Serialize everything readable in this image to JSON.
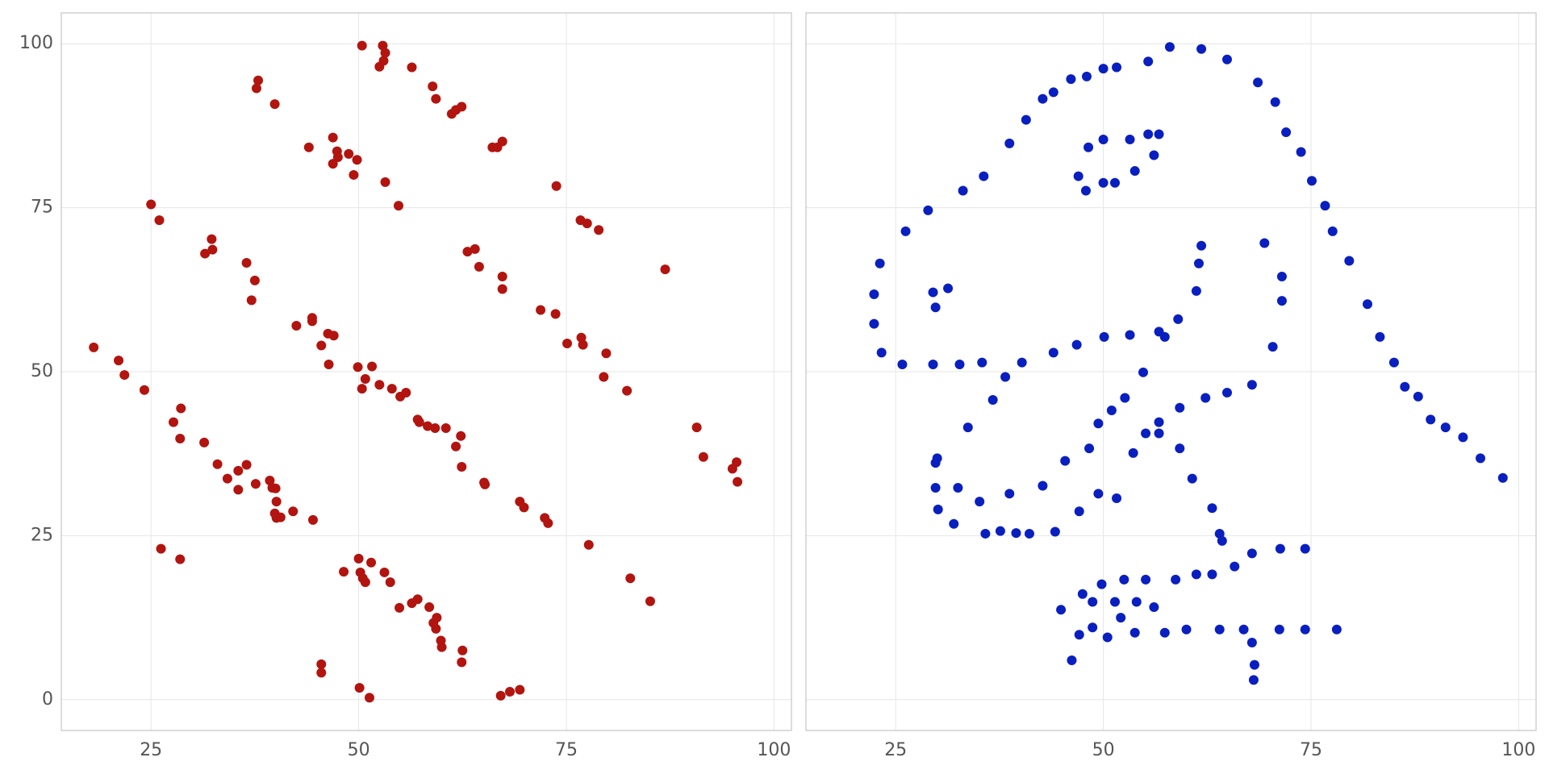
{
  "chart_data": [
    {
      "type": "scatter",
      "color": "#b2140f",
      "xlim": [
        14.2,
        102.1
      ],
      "ylim": [
        -4.7,
        104.7
      ],
      "xticks": [
        25,
        50,
        75,
        100
      ],
      "yticks": [
        0,
        25,
        50,
        75,
        100
      ],
      "grid": true,
      "x": [
        18.1,
        21.1,
        21.8,
        24.2,
        25.0,
        26.0,
        26.2,
        28.5,
        27.7,
        28.6,
        28.5,
        31.4,
        31.5,
        32.3,
        32.4,
        33.0,
        34.2,
        35.5,
        35.5,
        36.5,
        36.5,
        37.1,
        37.5,
        37.6,
        37.7,
        37.9,
        39.3,
        39.6,
        40.0,
        39.9,
        40.1,
        40.1,
        40.6,
        42.1,
        44.5,
        39.9,
        42.5,
        44.0,
        44.4,
        44.4,
        45.5,
        45.5,
        45.5,
        46.3,
        47.0,
        46.4,
        46.9,
        47.4,
        47.5,
        46.9,
        48.2,
        48.8,
        49.4,
        49.8,
        49.9,
        50.0,
        50.4,
        50.4,
        50.2,
        50.5,
        50.8,
        50.8,
        50.1,
        51.5,
        51.6,
        51.3,
        52.5,
        52.5,
        53.0,
        52.9,
        53.2,
        53.2,
        53.1,
        53.8,
        54.0,
        54.8,
        54.9,
        55.0,
        55.7,
        56.4,
        56.4,
        57.1,
        57.1,
        57.3,
        58.3,
        58.5,
        58.9,
        59.3,
        59.2,
        59.0,
        59.4,
        59.3,
        59.9,
        60.0,
        60.5,
        61.2,
        61.7,
        62.4,
        61.7,
        62.3,
        62.4,
        62.4,
        62.5,
        63.1,
        64.0,
        64.5,
        65.1,
        65.2,
        66.1,
        66.7,
        67.3,
        67.3,
        67.3,
        67.1,
        68.2,
        69.4,
        69.4,
        69.9,
        71.9,
        72.4,
        72.8,
        73.7,
        73.8,
        75.1,
        76.7,
        76.8,
        77.0,
        77.5,
        77.7,
        78.9,
        79.8,
        79.5,
        82.3,
        82.7,
        85.1,
        86.9,
        90.7,
        91.5,
        95.0,
        95.5,
        95.6
      ],
      "values": [
        53.7,
        51.7,
        49.5,
        47.2,
        75.5,
        73.1,
        23.0,
        21.4,
        42.3,
        44.4,
        39.8,
        39.2,
        68.0,
        70.2,
        68.6,
        35.9,
        33.7,
        34.9,
        32.0,
        35.8,
        66.6,
        60.9,
        63.9,
        32.9,
        93.2,
        94.4,
        33.4,
        32.3,
        32.2,
        28.4,
        30.2,
        27.7,
        27.8,
        28.7,
        27.4,
        90.8,
        57.0,
        84.2,
        58.2,
        57.7,
        54.0,
        5.4,
        4.1,
        55.8,
        55.5,
        51.1,
        85.7,
        83.6,
        82.7,
        81.7,
        19.5,
        83.2,
        80.0,
        82.3,
        50.7,
        21.5,
        47.4,
        99.7,
        19.4,
        18.5,
        17.9,
        48.9,
        1.8,
        20.9,
        50.8,
        0.3,
        48.0,
        96.5,
        97.4,
        99.7,
        98.6,
        78.9,
        19.4,
        17.9,
        47.4,
        75.3,
        14.0,
        46.2,
        46.8,
        96.4,
        14.7,
        15.3,
        42.7,
        42.3,
        41.7,
        14.1,
        93.5,
        91.6,
        41.4,
        11.7,
        12.5,
        10.8,
        9.0,
        8.0,
        41.4,
        89.3,
        89.9,
        90.4,
        38.6,
        40.2,
        35.5,
        5.7,
        7.5,
        68.3,
        68.7,
        66.0,
        33.1,
        32.8,
        84.2,
        84.2,
        85.1,
        64.5,
        62.6,
        0.6,
        1.2,
        1.5,
        30.2,
        29.3,
        59.4,
        27.7,
        26.9,
        58.8,
        78.3,
        54.3,
        73.1,
        55.2,
        54.1,
        72.6,
        23.6,
        71.6,
        52.8,
        49.2,
        47.1,
        18.5,
        15.0,
        65.6,
        41.5,
        37.0,
        35.2,
        36.2,
        33.2
      ]
    },
    {
      "type": "scatter",
      "color": "#0a1fbf",
      "xlim": [
        14.2,
        102.1
      ],
      "ylim": [
        -4.7,
        104.7
      ],
      "xticks": [
        25,
        50,
        75,
        100
      ],
      "yticks": [
        0,
        25,
        50,
        75,
        100
      ],
      "grid": true,
      "x": [
        22.4,
        22.4,
        23.1,
        23.3,
        25.8,
        26.2,
        28.9,
        29.5,
        29.8,
        31.3,
        29.5,
        29.8,
        30.0,
        29.8,
        30.1,
        32.0,
        32.5,
        32.7,
        33.1,
        33.7,
        35.1,
        35.4,
        35.6,
        35.8,
        36.7,
        37.6,
        38.2,
        38.7,
        38.7,
        39.5,
        40.2,
        40.7,
        41.1,
        42.7,
        42.7,
        44.0,
        44.0,
        44.2,
        44.9,
        45.4,
        46.1,
        46.2,
        46.8,
        47.0,
        47.1,
        47.1,
        47.5,
        47.9,
        48.0,
        48.2,
        48.3,
        48.7,
        48.7,
        49.4,
        49.4,
        49.8,
        50.0,
        50.0,
        50.0,
        50.1,
        50.5,
        51.0,
        51.4,
        51.4,
        51.6,
        51.6,
        52.1,
        52.5,
        52.6,
        53.2,
        53.2,
        53.6,
        53.8,
        53.8,
        54.0,
        54.8,
        55.1,
        55.1,
        55.4,
        55.4,
        56.1,
        56.1,
        56.7,
        56.7,
        56.7,
        56.7,
        57.4,
        57.4,
        58.0,
        58.7,
        59.0,
        59.2,
        59.2,
        60.0,
        60.7,
        61.2,
        61.2,
        61.5,
        61.8,
        61.8,
        62.3,
        63.1,
        63.1,
        64.0,
        64.3,
        64.0,
        64.9,
        64.9,
        65.8,
        66.9,
        67.9,
        67.9,
        67.9,
        68.2,
        68.1,
        68.6,
        69.4,
        70.4,
        70.7,
        71.2,
        71.3,
        71.5,
        71.5,
        72.0,
        73.8,
        74.3,
        74.3,
        75.1,
        76.7,
        77.6,
        78.1,
        79.6,
        81.8,
        83.3,
        85.0,
        86.3,
        87.9,
        89.4,
        91.2,
        93.3,
        95.4,
        98.1
      ],
      "values": [
        61.8,
        57.3,
        66.5,
        52.9,
        51.1,
        71.4,
        74.6,
        62.1,
        59.8,
        62.7,
        51.1,
        36.1,
        36.8,
        32.3,
        29.0,
        26.8,
        32.3,
        51.1,
        77.6,
        41.5,
        30.2,
        51.4,
        79.8,
        25.3,
        45.7,
        25.7,
        49.2,
        31.4,
        84.8,
        25.4,
        51.4,
        88.4,
        25.3,
        32.6,
        91.6,
        92.6,
        52.9,
        25.6,
        13.7,
        36.4,
        94.6,
        6.0,
        54.1,
        79.8,
        28.7,
        9.9,
        16.1,
        77.6,
        95.0,
        84.2,
        38.3,
        14.9,
        11.0,
        42.1,
        31.4,
        17.6,
        96.2,
        85.4,
        78.8,
        55.3,
        9.5,
        44.1,
        78.8,
        14.9,
        96.4,
        30.7,
        12.5,
        18.3,
        46.0,
        85.4,
        55.6,
        37.6,
        80.6,
        10.2,
        14.9,
        49.9,
        18.3,
        40.6,
        97.3,
        86.2,
        14.1,
        83.0,
        86.2,
        56.1,
        42.3,
        40.6,
        55.3,
        10.2,
        99.5,
        18.3,
        58.0,
        44.5,
        38.3,
        10.7,
        33.7,
        19.1,
        62.3,
        66.5,
        69.2,
        99.2,
        46.0,
        19.1,
        29.2,
        25.3,
        24.2,
        10.7,
        46.8,
        97.6,
        20.3,
        10.7,
        48.0,
        22.3,
        8.7,
        5.3,
        3.0,
        94.1,
        69.6,
        53.8,
        91.1,
        10.7,
        23.0,
        64.5,
        60.8,
        86.5,
        83.5,
        10.7,
        23.0,
        79.1,
        75.3,
        71.4,
        10.7,
        66.9,
        60.3,
        55.3,
        51.4,
        47.7,
        46.2,
        42.7,
        41.5,
        40.0,
        36.8,
        33.8
      ]
    }
  ]
}
